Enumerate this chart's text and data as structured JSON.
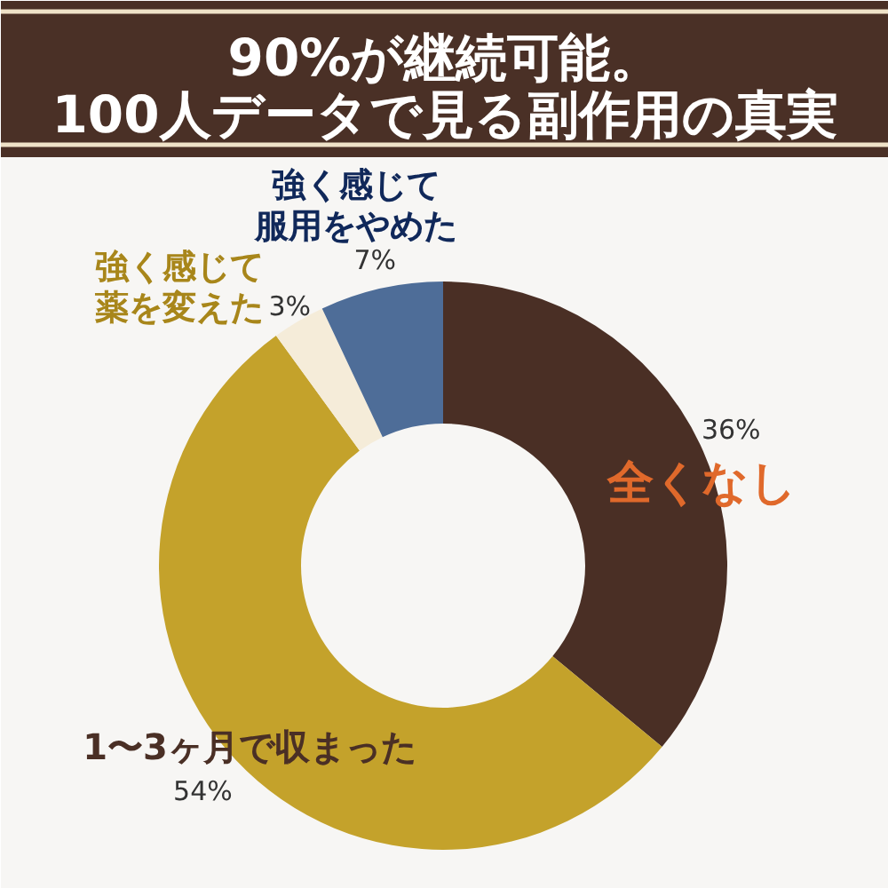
{
  "chart_data": {
    "type": "donut",
    "title": "90%が継続可能。100人データで見る副作用の真実",
    "categories": [
      "全くなし",
      "1〜3ヶ月で収まった",
      "強く感じて薬を変えた",
      "強く感じて服用をやめた"
    ],
    "values": [
      36,
      54,
      3,
      7
    ],
    "colors": [
      "#4a2f25",
      "#c4a22b",
      "#f5ecd9",
      "#4e6d98"
    ],
    "value_labels": [
      "36%",
      "54%",
      "3%",
      "7%"
    ]
  }
}
